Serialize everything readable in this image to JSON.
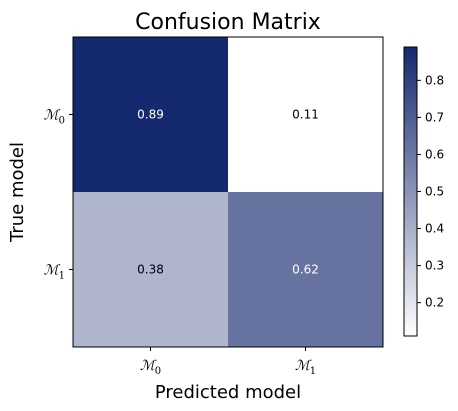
{
  "chart_data": {
    "type": "heatmap",
    "title": "Confusion Matrix",
    "xlabel": "Predicted model",
    "ylabel": "True model",
    "x_categories": [
      {
        "symbol": "ℳ",
        "sub": "0"
      },
      {
        "symbol": "ℳ",
        "sub": "1"
      }
    ],
    "y_categories": [
      {
        "symbol": "ℳ",
        "sub": "0"
      },
      {
        "symbol": "ℳ",
        "sub": "1"
      }
    ],
    "values": [
      [
        0.89,
        0.11
      ],
      [
        0.38,
        0.62
      ]
    ],
    "cell_labels": [
      [
        "0.89",
        "0.11"
      ],
      [
        "0.38",
        "0.62"
      ]
    ],
    "colorbar": {
      "range": [
        0.11,
        0.89
      ],
      "ticks": [
        0.2,
        0.3,
        0.4,
        0.5,
        0.6,
        0.7,
        0.8
      ],
      "tick_labels": [
        "0.2",
        "0.3",
        "0.4",
        "0.5",
        "0.6",
        "0.7",
        "0.8"
      ],
      "color_low": "#ffffff",
      "color_high": "#15296f"
    },
    "grid": false
  }
}
